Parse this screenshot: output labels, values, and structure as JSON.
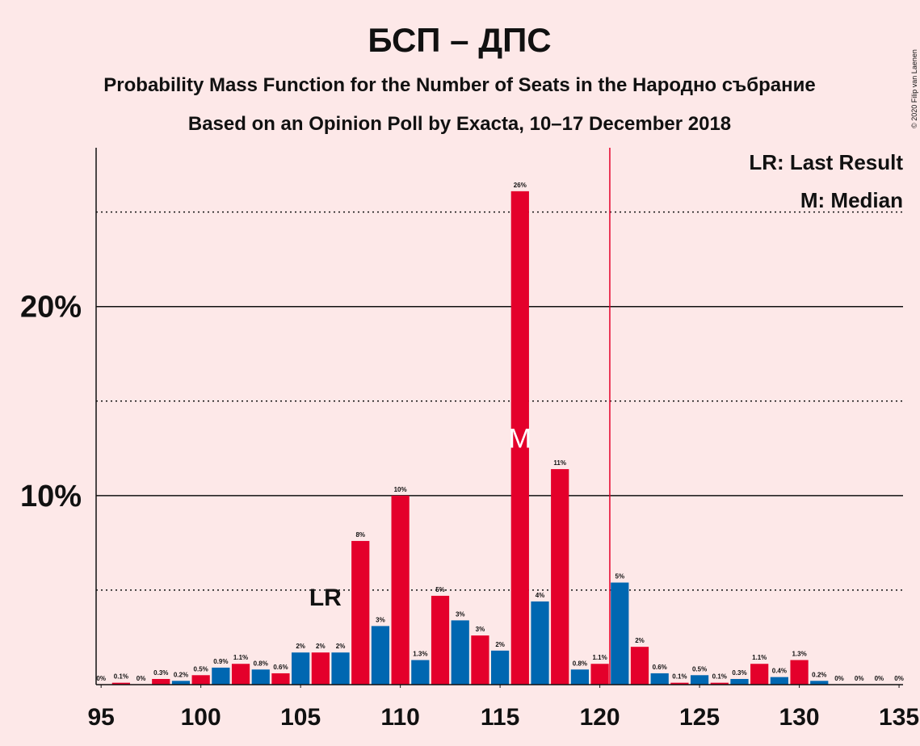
{
  "chart_data": {
    "type": "bar",
    "title": "БСП – ДПС",
    "subtitle": "Probability Mass Function for the Number of Seats in the Народно събрание",
    "subtitle2": "Based on an Opinion Poll by Exacta, 10–17 December 2018",
    "copyright": "© 2020 Filip van Laenen",
    "x": [
      95,
      96,
      97,
      98,
      99,
      100,
      101,
      102,
      103,
      104,
      105,
      106,
      107,
      108,
      109,
      110,
      111,
      112,
      113,
      114,
      115,
      116,
      117,
      118,
      119,
      120,
      121,
      122,
      123,
      124,
      125,
      126,
      127,
      128,
      129,
      130,
      131,
      132,
      133,
      134,
      135
    ],
    "values": [
      0,
      0.1,
      0,
      0.3,
      0.2,
      0.5,
      0.9,
      1.1,
      0.8,
      0.6,
      1.7,
      1.7,
      1.7,
      7.6,
      3.1,
      10.0,
      1.3,
      4.7,
      3.4,
      2.6,
      1.8,
      26.1,
      4.4,
      11.4,
      0.8,
      1.1,
      5.4,
      2.0,
      0.6,
      0.1,
      0.5,
      0.1,
      0.3,
      1.1,
      0.4,
      1.3,
      0.2,
      0,
      0,
      0,
      0
    ],
    "value_labels": [
      "0%",
      "0.1%",
      "0%",
      "0.3%",
      "0.2%",
      "0.5%",
      "0.9%",
      "1.1%",
      "0.8%",
      "0.6%",
      "2%",
      "2%",
      "2%",
      "8%",
      "3%",
      "10%",
      "1.3%",
      "5%",
      "3%",
      "3%",
      "2%",
      "26%",
      "4%",
      "11%",
      "0.8%",
      "1.1%",
      "5%",
      "2%",
      "0.6%",
      "0.1%",
      "0.5%",
      "0.1%",
      "0.3%",
      "1.1%",
      "0.4%",
      "1.3%",
      "0.2%",
      "0%",
      "0%",
      "0%",
      "0%"
    ],
    "colors": [
      "#0067b1",
      "#e4002b",
      "#0067b1",
      "#e4002b",
      "#0067b1",
      "#e4002b",
      "#0067b1",
      "#e4002b",
      "#0067b1",
      "#e4002b",
      "#0067b1",
      "#e4002b",
      "#0067b1",
      "#e4002b",
      "#0067b1",
      "#e4002b",
      "#0067b1",
      "#e4002b",
      "#0067b1",
      "#e4002b",
      "#0067b1",
      "#e4002b",
      "#0067b1",
      "#e4002b",
      "#0067b1",
      "#e4002b",
      "#0067b1",
      "#e4002b",
      "#0067b1",
      "#e4002b",
      "#0067b1",
      "#e4002b",
      "#0067b1",
      "#e4002b",
      "#0067b1",
      "#e4002b",
      "#0067b1",
      "#e4002b",
      "#0067b1",
      "#e4002b",
      "#0067b1"
    ],
    "xlim": [
      94.75,
      135.2
    ],
    "xticks": [
      95,
      100,
      105,
      110,
      115,
      120,
      125,
      130,
      135
    ],
    "ylim": [
      0,
      28.4
    ],
    "yticks": [
      {
        "value": 10,
        "label": "10%"
      },
      {
        "value": 20,
        "label": "20%"
      }
    ],
    "minor_gridlines": [
      5,
      15,
      25
    ],
    "grid": true,
    "threshold": 120.5,
    "threshold_color": "#e4002b",
    "last_result": 106,
    "last_result_label": "LR",
    "median": 116,
    "median_label": "M",
    "legend": [
      "LR: Last Result",
      "M: Median"
    ]
  }
}
